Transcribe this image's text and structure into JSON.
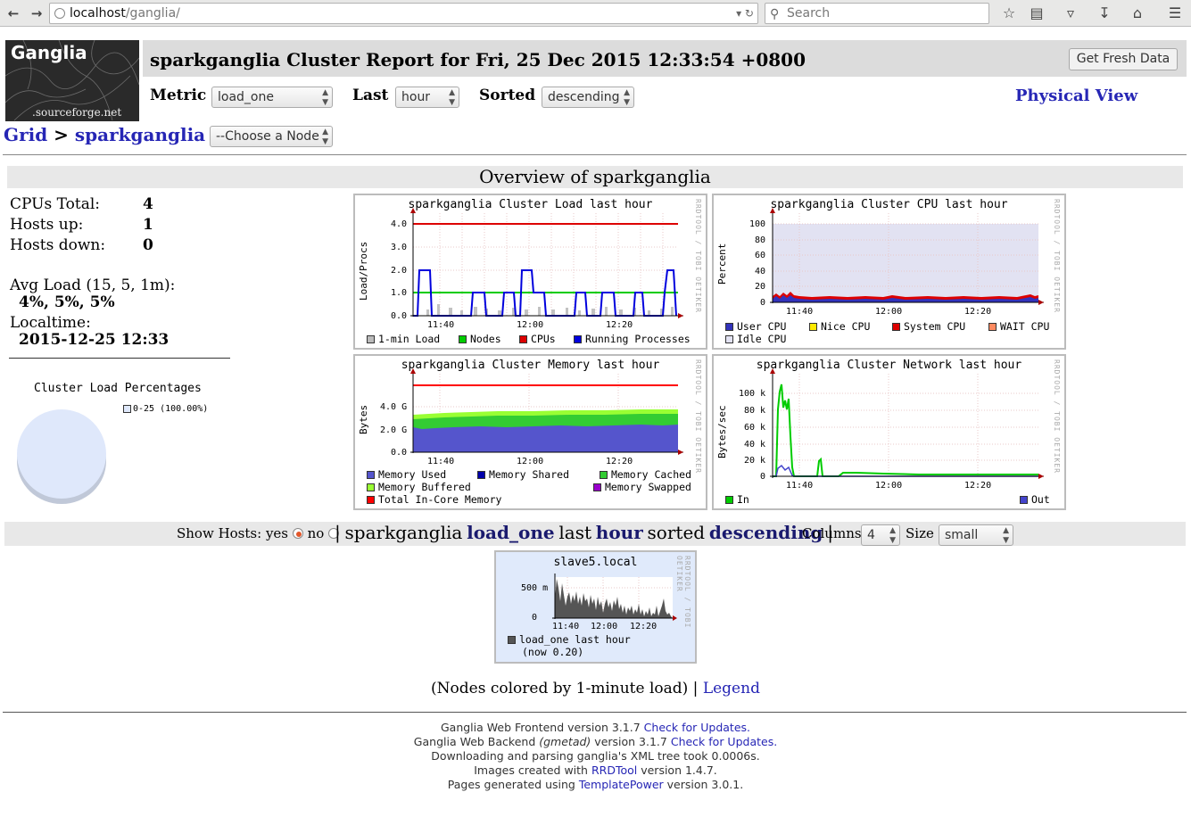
{
  "browser": {
    "url_host": "localhost",
    "url_path": "/ganglia/",
    "search_placeholder": "Search"
  },
  "header": {
    "logo_title": "Ganglia",
    "logo_subtitle": ".sourceforge.net",
    "title": "sparkganglia Cluster Report for Fri, 25 Dec 2015 12:33:54 +0800",
    "fresh_button": "Get Fresh Data",
    "metric_label": "Metric",
    "metric_value": "load_one",
    "last_label": "Last",
    "last_value": "hour",
    "sorted_label": "Sorted",
    "sorted_value": "descending",
    "physical_view": "Physical View"
  },
  "breadcrumb": {
    "grid": "Grid",
    "sep1": ">",
    "cluster": "sparkganglia",
    "sep2": ">",
    "node_select": "--Choose a Node"
  },
  "overview": {
    "title": "Overview of sparkganglia",
    "cpus_label": "CPUs Total:",
    "cpus_value": "4",
    "hosts_up_label": "Hosts up:",
    "hosts_up_value": "1",
    "hosts_down_label": "Hosts down:",
    "hosts_down_value": "0",
    "avg_load_label": "Avg Load (15, 5, 1m):",
    "avg_load_value": "4%, 5%, 5%",
    "localtime_label": "Localtime:",
    "localtime_value": "2015-12-25 12:33",
    "pie_title": "Cluster Load Percentages",
    "pie_legend": "0-25 (100.00%)"
  },
  "rrd_credit": "RRDTOOL / TOBI OETIKER",
  "graphs": {
    "load": {
      "title": "sparkganglia Cluster Load last hour",
      "ylabel": "Load/Procs",
      "yticks": [
        "4.0",
        "3.0",
        "2.0",
        "1.0",
        "0.0"
      ],
      "xticks": [
        "11:40",
        "12:00",
        "12:20"
      ],
      "legend": [
        "1-min Load",
        "Nodes",
        "CPUs",
        "Running Processes"
      ]
    },
    "cpu": {
      "title": "sparkganglia Cluster CPU last hour",
      "ylabel": "Percent",
      "yticks": [
        "100",
        "80",
        "60",
        "40",
        "20",
        "0"
      ],
      "xticks": [
        "11:40",
        "12:00",
        "12:20"
      ],
      "legend": [
        "User CPU",
        "Nice CPU",
        "System CPU",
        "WAIT CPU",
        "Idle CPU"
      ]
    },
    "memory": {
      "title": "sparkganglia Cluster Memory last hour",
      "ylabel": "Bytes",
      "yticks": [
        "4.0 G",
        "2.0 G",
        "0.0"
      ],
      "xticks": [
        "11:40",
        "12:00",
        "12:20"
      ],
      "legend": [
        "Memory Used",
        "Memory Shared",
        "Memory Cached",
        "Memory Buffered",
        "Memory Swapped",
        "Total In-Core Memory"
      ]
    },
    "network": {
      "title": "sparkganglia Cluster Network last hour",
      "ylabel": "Bytes/sec",
      "yticks": [
        "100 k",
        "80 k",
        "60 k",
        "40 k",
        "20 k",
        "0"
      ],
      "xticks": [
        "11:40",
        "12:00",
        "12:20"
      ],
      "legend": [
        "In",
        "Out"
      ]
    }
  },
  "hosts_bar": {
    "show_hosts": "Show Hosts:",
    "yes": "yes",
    "no": "no",
    "bar1": "|",
    "cluster": "sparkganglia",
    "metric": "load_one",
    "last": "last",
    "period": "hour",
    "sorted": "sorted",
    "order": "descending",
    "bar2": "|",
    "columns_label": "Columns",
    "columns_value": "4",
    "size_label": "Size",
    "size_value": "small"
  },
  "host_graph": {
    "title": "slave5.local",
    "yticks": [
      "500 m",
      "0"
    ],
    "xticks": [
      "11:40",
      "12:00",
      "12:20"
    ],
    "legend_line1": "load_one last hour",
    "legend_line2": "(now 0.20)"
  },
  "nodes_note": "(Nodes colored by 1-minute load) |",
  "legend_link": "Legend",
  "footer": {
    "l1a": "Ganglia Web Frontend version 3.1.7",
    "l1b": "Check for Updates.",
    "l2a": "Ganglia Web Backend",
    "l2b": "(gmetad)",
    "l2c": "version 3.1.7",
    "l2d": "Check for Updates.",
    "l3": "Downloading and parsing ganglia's XML tree took 0.0006s.",
    "l4a": "Images created with",
    "l4b": "RRDTool",
    "l4c": "version 1.4.7.",
    "l5a": "Pages generated using",
    "l5b": "TemplatePower",
    "l5c": "version 3.0.1."
  },
  "colors": {
    "link": "#2626b5",
    "load_1min": "#bbbbbb",
    "nodes": "#00cc00",
    "cpus": "#dd0000",
    "running": "#0000dd",
    "user_cpu": "#3333bb",
    "nice_cpu": "#ffea00",
    "system_cpu": "#dd0000",
    "wait_cpu": "#ff8a60",
    "idle_cpu": "#e2e2f2",
    "mem_used": "#5555cc",
    "mem_shared": "#0000aa",
    "mem_cached": "#33cc33",
    "mem_buffered": "#99ff33",
    "mem_swapped": "#9900cc",
    "mem_total": "#ff0000",
    "net_in": "#00cc00",
    "net_out": "#4444cc",
    "host_bg": "#e0eafb",
    "pie": "#dfe8fb"
  }
}
